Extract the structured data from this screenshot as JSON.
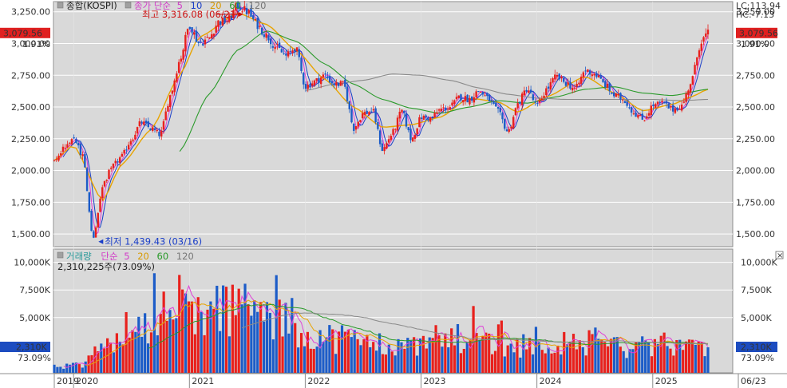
{
  "price_panel": {
    "legend_main": "종합(KOSPI)",
    "legend_ma_label": "종가 단순",
    "legend_ma_periods": [
      "5",
      "10",
      "20",
      "60",
      "120"
    ],
    "current_value": "3,079.56",
    "current_pct": "1.91%",
    "lc_label": "LC:113.94",
    "hc_label": "HC:-7.13",
    "high_annotation": "최고 3,316.08 (06/21)",
    "low_annotation": "최저 1,439.43 (03/16)"
  },
  "volume_panel": {
    "legend_main": "거래량",
    "legend_ma_label": "단순",
    "legend_ma_periods": [
      "5",
      "20",
      "60",
      "120"
    ],
    "current_info": "2,310,225주(73.09%)",
    "current_value": "2,310K",
    "current_pct": "73.09%",
    "close_glyph": "×"
  },
  "colors": {
    "up": "#e8201c",
    "down": "#1c5cc8",
    "ma5": "#e040d8",
    "ma10": "#1a3ec8",
    "ma20": "#e8a400",
    "ma60": "#2a9a2a",
    "ma120": "#8a8a8a",
    "panel_bg": "#d9d9d9"
  },
  "chart_data": [
    {
      "type": "candlestick",
      "series_name": "종합(KOSPI)",
      "y_ticks": [
        "3,250.00",
        "3,000.00",
        "2,750.00",
        "2,500.00",
        "2,250.00",
        "2,000.00",
        "1,750.00",
        "1,500.00"
      ],
      "y_tick_values": [
        3250,
        3000,
        2750,
        2500,
        2250,
        2000,
        1750,
        1500
      ],
      "ylim": [
        1400,
        3330
      ],
      "x_tick_labels": [
        "2019",
        "2020",
        "2021",
        "2022",
        "2023",
        "2024",
        "2025",
        "06/23"
      ],
      "x_tick_dates": [
        "2019-11",
        "2020-01",
        "2021-01",
        "2022-01",
        "2023-01",
        "2024-01",
        "2025-01",
        "2025-06-23"
      ],
      "x_range": [
        "2019-11",
        "2025-06-23"
      ],
      "close_path": [
        {
          "d": "2019-11",
          "v": 2070
        },
        {
          "d": "2019-12",
          "v": 2180
        },
        {
          "d": "2020-01",
          "v": 2250
        },
        {
          "d": "2020-02",
          "v": 2100
        },
        {
          "d": "2020-03",
          "v": 1440
        },
        {
          "d": "2020-04",
          "v": 1880
        },
        {
          "d": "2020-05",
          "v": 2030
        },
        {
          "d": "2020-06",
          "v": 2110
        },
        {
          "d": "2020-07",
          "v": 2250
        },
        {
          "d": "2020-08",
          "v": 2380
        },
        {
          "d": "2020-09",
          "v": 2330
        },
        {
          "d": "2020-10",
          "v": 2280
        },
        {
          "d": "2020-11",
          "v": 2590
        },
        {
          "d": "2020-12",
          "v": 2870
        },
        {
          "d": "2021-01",
          "v": 3150
        },
        {
          "d": "2021-02",
          "v": 3000
        },
        {
          "d": "2021-03",
          "v": 3040
        },
        {
          "d": "2021-04",
          "v": 3170
        },
        {
          "d": "2021-05",
          "v": 3180
        },
        {
          "d": "2021-06",
          "v": 3300
        },
        {
          "d": "2021-07",
          "v": 3250
        },
        {
          "d": "2021-08",
          "v": 3150
        },
        {
          "d": "2021-09",
          "v": 3060
        },
        {
          "d": "2021-10",
          "v": 2970
        },
        {
          "d": "2021-11",
          "v": 2900
        },
        {
          "d": "2021-12",
          "v": 2970
        },
        {
          "d": "2022-01",
          "v": 2660
        },
        {
          "d": "2022-02",
          "v": 2700
        },
        {
          "d": "2022-03",
          "v": 2750
        },
        {
          "d": "2022-04",
          "v": 2680
        },
        {
          "d": "2022-05",
          "v": 2680
        },
        {
          "d": "2022-06",
          "v": 2330
        },
        {
          "d": "2022-07",
          "v": 2450
        },
        {
          "d": "2022-08",
          "v": 2470
        },
        {
          "d": "2022-09",
          "v": 2160
        },
        {
          "d": "2022-10",
          "v": 2290
        },
        {
          "d": "2022-11",
          "v": 2470
        },
        {
          "d": "2022-12",
          "v": 2240
        },
        {
          "d": "2023-01",
          "v": 2420
        },
        {
          "d": "2023-02",
          "v": 2410
        },
        {
          "d": "2023-03",
          "v": 2480
        },
        {
          "d": "2023-04",
          "v": 2500
        },
        {
          "d": "2023-05",
          "v": 2580
        },
        {
          "d": "2023-06",
          "v": 2560
        },
        {
          "d": "2023-07",
          "v": 2630
        },
        {
          "d": "2023-08",
          "v": 2560
        },
        {
          "d": "2023-09",
          "v": 2460
        },
        {
          "d": "2023-10",
          "v": 2300
        },
        {
          "d": "2023-11",
          "v": 2520
        },
        {
          "d": "2023-12",
          "v": 2650
        },
        {
          "d": "2024-01",
          "v": 2500
        },
        {
          "d": "2024-02",
          "v": 2640
        },
        {
          "d": "2024-03",
          "v": 2740
        },
        {
          "d": "2024-04",
          "v": 2690
        },
        {
          "d": "2024-05",
          "v": 2640
        },
        {
          "d": "2024-06",
          "v": 2790
        },
        {
          "d": "2024-07",
          "v": 2760
        },
        {
          "d": "2024-08",
          "v": 2680
        },
        {
          "d": "2024-09",
          "v": 2590
        },
        {
          "d": "2024-10",
          "v": 2560
        },
        {
          "d": "2024-11",
          "v": 2460
        },
        {
          "d": "2024-12",
          "v": 2400
        },
        {
          "d": "2025-01",
          "v": 2510
        },
        {
          "d": "2025-02",
          "v": 2530
        },
        {
          "d": "2025-03",
          "v": 2480
        },
        {
          "d": "2025-04",
          "v": 2510
        },
        {
          "d": "2025-05",
          "v": 2700
        },
        {
          "d": "2025-06",
          "v": 3020
        },
        {
          "d": "2025-06-23",
          "v": 3079.56
        }
      ],
      "ma_paths": {
        "ma20": [
          {
            "d": "2019-11",
            "v": 2080
          },
          {
            "d": "2020-01",
            "v": 2200
          },
          {
            "d": "2020-04",
            "v": 1760
          },
          {
            "d": "2020-06",
            "v": 2050
          },
          {
            "d": "2020-09",
            "v": 2320
          },
          {
            "d": "2020-12",
            "v": 2750
          },
          {
            "d": "2021-02",
            "v": 3050
          },
          {
            "d": "2021-06",
            "v": 3240
          },
          {
            "d": "2021-09",
            "v": 3150
          },
          {
            "d": "2021-12",
            "v": 2950
          },
          {
            "d": "2022-03",
            "v": 2720
          },
          {
            "d": "2022-06",
            "v": 2500
          },
          {
            "d": "2022-09",
            "v": 2340
          },
          {
            "d": "2022-12",
            "v": 2360
          },
          {
            "d": "2023-03",
            "v": 2420
          },
          {
            "d": "2023-06",
            "v": 2570
          },
          {
            "d": "2023-09",
            "v": 2540
          },
          {
            "d": "2023-11",
            "v": 2460
          },
          {
            "d": "2024-02",
            "v": 2580
          },
          {
            "d": "2024-06",
            "v": 2740
          },
          {
            "d": "2024-09",
            "v": 2610
          },
          {
            "d": "2024-12",
            "v": 2470
          },
          {
            "d": "2025-03",
            "v": 2520
          },
          {
            "d": "2025-05",
            "v": 2580
          },
          {
            "d": "2025-06-23",
            "v": 2640
          }
        ],
        "ma60": [
          {
            "d": "2020-12",
            "v": 2150
          },
          {
            "d": "2021-03",
            "v": 2600
          },
          {
            "d": "2021-06",
            "v": 2950
          },
          {
            "d": "2021-09",
            "v": 3100
          },
          {
            "d": "2021-12",
            "v": 3020
          },
          {
            "d": "2022-03",
            "v": 2840
          },
          {
            "d": "2022-06",
            "v": 2680
          },
          {
            "d": "2022-09",
            "v": 2560
          },
          {
            "d": "2022-12",
            "v": 2490
          },
          {
            "d": "2023-03",
            "v": 2450
          },
          {
            "d": "2023-06",
            "v": 2500
          },
          {
            "d": "2023-09",
            "v": 2550
          },
          {
            "d": "2023-12",
            "v": 2530
          },
          {
            "d": "2024-03",
            "v": 2580
          },
          {
            "d": "2024-06",
            "v": 2640
          },
          {
            "d": "2024-09",
            "v": 2660
          },
          {
            "d": "2024-12",
            "v": 2610
          },
          {
            "d": "2025-03",
            "v": 2590
          },
          {
            "d": "2025-06-23",
            "v": 2640
          }
        ],
        "ma120": [
          {
            "d": "2022-01",
            "v": 2630
          },
          {
            "d": "2022-04",
            "v": 2680
          },
          {
            "d": "2022-07",
            "v": 2710
          },
          {
            "d": "2022-10",
            "v": 2760
          },
          {
            "d": "2023-01",
            "v": 2750
          },
          {
            "d": "2023-04",
            "v": 2710
          },
          {
            "d": "2023-07",
            "v": 2650
          },
          {
            "d": "2023-10",
            "v": 2600
          },
          {
            "d": "2024-01",
            "v": 2570
          },
          {
            "d": "2024-04",
            "v": 2560
          },
          {
            "d": "2024-07",
            "v": 2560
          },
          {
            "d": "2024-10",
            "v": 2560
          },
          {
            "d": "2025-01",
            "v": 2560
          },
          {
            "d": "2025-04",
            "v": 2550
          },
          {
            "d": "2025-06-23",
            "v": 2560
          }
        ]
      }
    },
    {
      "type": "bar",
      "series_name": "거래량",
      "y_ticks": [
        "10,000K",
        "7,500K",
        "5,000K"
      ],
      "y_tick_values": [
        10000,
        7500,
        5000
      ],
      "ylim": [
        0,
        11200
      ],
      "current_value_k": 2310,
      "volume_path": [
        {
          "d": "2019-11",
          "v": 520
        },
        {
          "d": "2019-12",
          "v": 560
        },
        {
          "d": "2020-01",
          "v": 650
        },
        {
          "d": "2020-02",
          "v": 700
        },
        {
          "d": "2020-03",
          "v": 1500
        },
        {
          "d": "2020-04",
          "v": 2800
        },
        {
          "d": "2020-05",
          "v": 3100
        },
        {
          "d": "2020-06",
          "v": 4200
        },
        {
          "d": "2020-07",
          "v": 3900
        },
        {
          "d": "2020-08",
          "v": 5300
        },
        {
          "d": "2020-09",
          "v": 4500
        },
        {
          "d": "2020-10",
          "v": 4000
        },
        {
          "d": "2020-11",
          "v": 4300
        },
        {
          "d": "2020-12",
          "v": 5600
        },
        {
          "d": "2021-01",
          "v": 6700
        },
        {
          "d": "2021-02",
          "v": 5300
        },
        {
          "d": "2021-03",
          "v": 4800
        },
        {
          "d": "2021-04",
          "v": 5900
        },
        {
          "d": "2021-05",
          "v": 5800
        },
        {
          "d": "2021-06",
          "v": 6200
        },
        {
          "d": "2021-07",
          "v": 6000
        },
        {
          "d": "2021-08",
          "v": 5500
        },
        {
          "d": "2021-09",
          "v": 4900
        },
        {
          "d": "2021-10",
          "v": 4600
        },
        {
          "d": "2021-11",
          "v": 4700
        },
        {
          "d": "2021-12",
          "v": 4000
        },
        {
          "d": "2022-01",
          "v": 3600
        },
        {
          "d": "2022-02",
          "v": 3400
        },
        {
          "d": "2022-03",
          "v": 3300
        },
        {
          "d": "2022-04",
          "v": 3100
        },
        {
          "d": "2022-05",
          "v": 3200
        },
        {
          "d": "2022-06",
          "v": 3000
        },
        {
          "d": "2022-07",
          "v": 2800
        },
        {
          "d": "2022-08",
          "v": 2700
        },
        {
          "d": "2022-09",
          "v": 2600
        },
        {
          "d": "2022-10",
          "v": 2500
        },
        {
          "d": "2022-11",
          "v": 2500
        },
        {
          "d": "2022-12",
          "v": 2400
        },
        {
          "d": "2023-01",
          "v": 2500
        },
        {
          "d": "2023-02",
          "v": 2600
        },
        {
          "d": "2023-03",
          "v": 2900
        },
        {
          "d": "2023-04",
          "v": 3300
        },
        {
          "d": "2023-05",
          "v": 3000
        },
        {
          "d": "2023-06",
          "v": 3100
        },
        {
          "d": "2023-07",
          "v": 3300
        },
        {
          "d": "2023-08",
          "v": 2900
        },
        {
          "d": "2023-09",
          "v": 2600
        },
        {
          "d": "2023-10",
          "v": 2400
        },
        {
          "d": "2023-11",
          "v": 2500
        },
        {
          "d": "2023-12",
          "v": 2400
        },
        {
          "d": "2024-01",
          "v": 2300
        },
        {
          "d": "2024-02",
          "v": 2600
        },
        {
          "d": "2024-03",
          "v": 2800
        },
        {
          "d": "2024-04",
          "v": 2600
        },
        {
          "d": "2024-05",
          "v": 2500
        },
        {
          "d": "2024-06",
          "v": 2700
        },
        {
          "d": "2024-07",
          "v": 2900
        },
        {
          "d": "2024-08",
          "v": 2600
        },
        {
          "d": "2024-09",
          "v": 2400
        },
        {
          "d": "2024-10",
          "v": 2300
        },
        {
          "d": "2024-11",
          "v": 2200
        },
        {
          "d": "2024-12",
          "v": 2300
        },
        {
          "d": "2025-01",
          "v": 2400
        },
        {
          "d": "2025-02",
          "v": 2600
        },
        {
          "d": "2025-03",
          "v": 2500
        },
        {
          "d": "2025-04",
          "v": 2400
        },
        {
          "d": "2025-05",
          "v": 2500
        },
        {
          "d": "2025-06",
          "v": 2600
        },
        {
          "d": "2025-06-23",
          "v": 2310
        }
      ]
    }
  ]
}
